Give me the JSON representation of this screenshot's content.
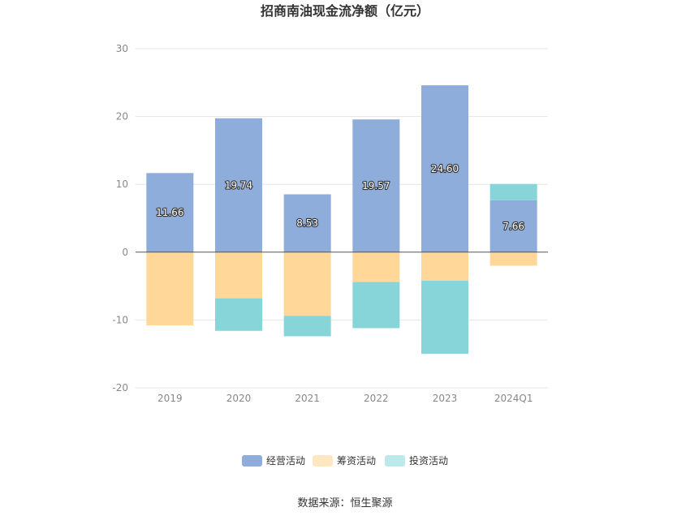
{
  "chart_data": {
    "type": "bar",
    "stacked": true,
    "title": "招商南油现金流净额（亿元）",
    "categories": [
      "2019",
      "2020",
      "2021",
      "2022",
      "2023",
      "2024Q1"
    ],
    "ylim": [
      -20,
      30
    ],
    "yticks": [
      -20,
      -10,
      0,
      10,
      20,
      30
    ],
    "grid": true,
    "legend_position": "bottom",
    "series": [
      {
        "name": "经营活动",
        "color": "#8eadda",
        "values": [
          11.66,
          19.74,
          8.53,
          19.57,
          24.6,
          7.66
        ],
        "labels": [
          "11.66",
          "19.74",
          "8.53",
          "19.57",
          "24.60",
          "7.66"
        ]
      },
      {
        "name": "筹资活动",
        "color": "#ffd899",
        "values": [
          -10.8,
          -6.8,
          -9.4,
          -4.4,
          -4.2,
          -2.0
        ]
      },
      {
        "name": "投资活动",
        "color": "#87d5d8",
        "values": [
          0,
          -4.8,
          -3.0,
          -6.8,
          -10.8,
          2.4
        ]
      }
    ],
    "legend": [
      {
        "name": "经营活动",
        "color": "#8eadda"
      },
      {
        "name": "筹资活动",
        "color": "#ffe7c2"
      },
      {
        "name": "投资活动",
        "color": "#bde9eb"
      }
    ]
  },
  "source": "数据来源：恒生聚源"
}
